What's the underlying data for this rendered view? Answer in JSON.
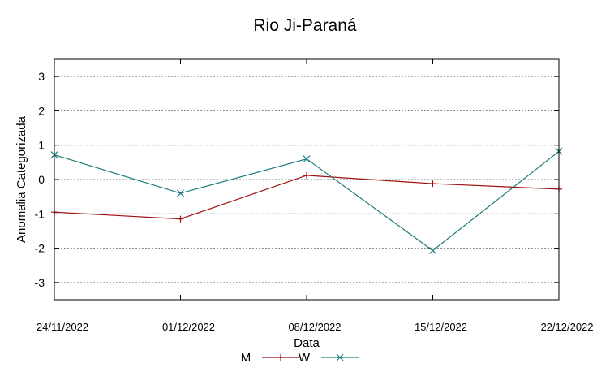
{
  "chart_data": {
    "type": "line",
    "title": "Rio Ji-Paraná",
    "xlabel": "Data",
    "ylabel": "Anomalia Categorizada",
    "categories": [
      "24/11/2022",
      "01/12/2022",
      "08/12/2022",
      "15/12/2022",
      "22/12/2022"
    ],
    "ylim": [
      -3.5,
      3.5
    ],
    "yticks": [
      3,
      2,
      1,
      0,
      -1,
      -2,
      -3
    ],
    "grid": true,
    "legend_position": "bottom",
    "series": [
      {
        "name": "M",
        "color": "#a01010",
        "marker": "plus",
        "values": [
          -0.95,
          -1.15,
          0.12,
          -0.12,
          -0.28
        ]
      },
      {
        "name": "W",
        "color": "#1a7a7a",
        "marker": "cross",
        "values": [
          0.72,
          -0.4,
          0.6,
          -2.07,
          0.82
        ]
      }
    ]
  }
}
